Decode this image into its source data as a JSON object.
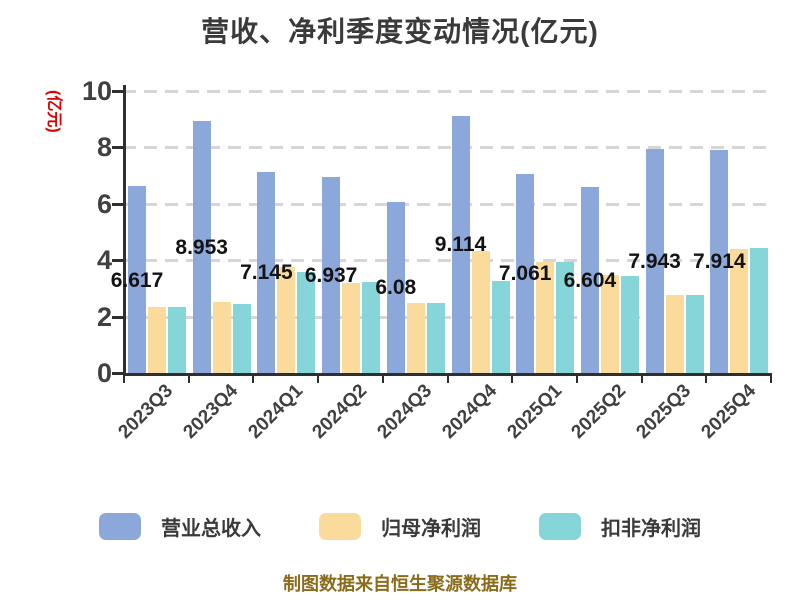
{
  "title": "营收、净利季度变动情况(亿元)",
  "y_axis_label": "(亿元)",
  "caption": "制图数据来自恒生聚源数据库",
  "chart_data": {
    "type": "bar",
    "title": "营收、净利季度变动情况(亿元)",
    "xlabel": "",
    "ylabel": "(亿元)",
    "categories": [
      "2023Q3",
      "2023Q4",
      "2024Q1",
      "2024Q2",
      "2024Q3",
      "2024Q4",
      "2025Q1",
      "2025Q2",
      "2025Q3",
      "2025Q4"
    ],
    "series": [
      {
        "name": "营业总收入",
        "color": "#8CA8DB",
        "values": [
          6.617,
          8.953,
          7.145,
          6.937,
          6.08,
          9.114,
          7.061,
          6.604,
          7.943,
          7.914
        ],
        "data_labels": [
          "6.617",
          "8.953",
          "7.145",
          "6.937",
          "6.08",
          "9.114",
          "7.061",
          "6.604",
          "7.943",
          "7.914"
        ]
      },
      {
        "name": "归母净利润",
        "color": "#FBDB9B",
        "values": [
          2.35,
          2.51,
          3.76,
          3.2,
          2.5,
          4.34,
          3.93,
          3.46,
          2.76,
          4.4
        ]
      },
      {
        "name": "扣非净利润",
        "color": "#86D5D8",
        "values": [
          2.35,
          2.44,
          3.58,
          3.23,
          2.5,
          3.27,
          3.95,
          3.45,
          2.76,
          4.45
        ]
      }
    ],
    "ylim": [
      0,
      10
    ],
    "yticks": [
      0,
      2,
      4,
      6,
      8,
      10
    ],
    "grid": "horizontal-dashed",
    "legend_position": "bottom"
  },
  "colors": {
    "background": "#FFFFFF",
    "title_text": "#3A3A3A",
    "axis_text": "#404040",
    "axis_line": "#2F2F2F",
    "gridline": "#D6D6D6",
    "data_label_text": "#131313",
    "y_axis_label_text": "#DD0000",
    "caption_text": "#8A6C1C",
    "revenue_bar": "#8CA8DB",
    "net_profit_bar": "#FBDB9B",
    "non_gaap_profit_bar": "#86D5D8"
  }
}
